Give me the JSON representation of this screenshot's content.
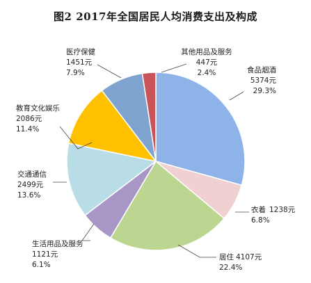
{
  "chart_data": {
    "type": "pie",
    "title": "图2    2017年全国居民人均消费支出及构成",
    "unit": "元",
    "start_angle_deg": 0,
    "direction": "clockwise",
    "slices": [
      {
        "name": "食品烟酒",
        "value": 5374,
        "value_text": "5374元",
        "percent": "29.3%",
        "color": "#8db3e8"
      },
      {
        "name": "衣着",
        "value": 1238,
        "value_text": "1238元",
        "percent": "6.8%",
        "color": "#f0d0d0"
      },
      {
        "name": "居住",
        "value": 4107,
        "value_text": "4107元",
        "percent": "22.4%",
        "color": "#bcd590"
      },
      {
        "name": "生活用品及服务",
        "value": 1121,
        "value_text": "1121元",
        "percent": "6.1%",
        "color": "#a897c6"
      },
      {
        "name": "交通通信",
        "value": 2499,
        "value_text": "2499元",
        "percent": "13.6%",
        "color": "#b8dde6"
      },
      {
        "name": "教育文化娱乐",
        "value": 2086,
        "value_text": "2086元",
        "percent": "11.4%",
        "color": "#ffc000"
      },
      {
        "name": "医疗保健",
        "value": 1451,
        "value_text": "1451元",
        "percent": "7.9%",
        "color": "#7fa3cf"
      },
      {
        "name": "其他用品及服务",
        "value": 447,
        "value_text": "447元",
        "percent": "2.4%",
        "color": "#c9545a"
      }
    ]
  }
}
